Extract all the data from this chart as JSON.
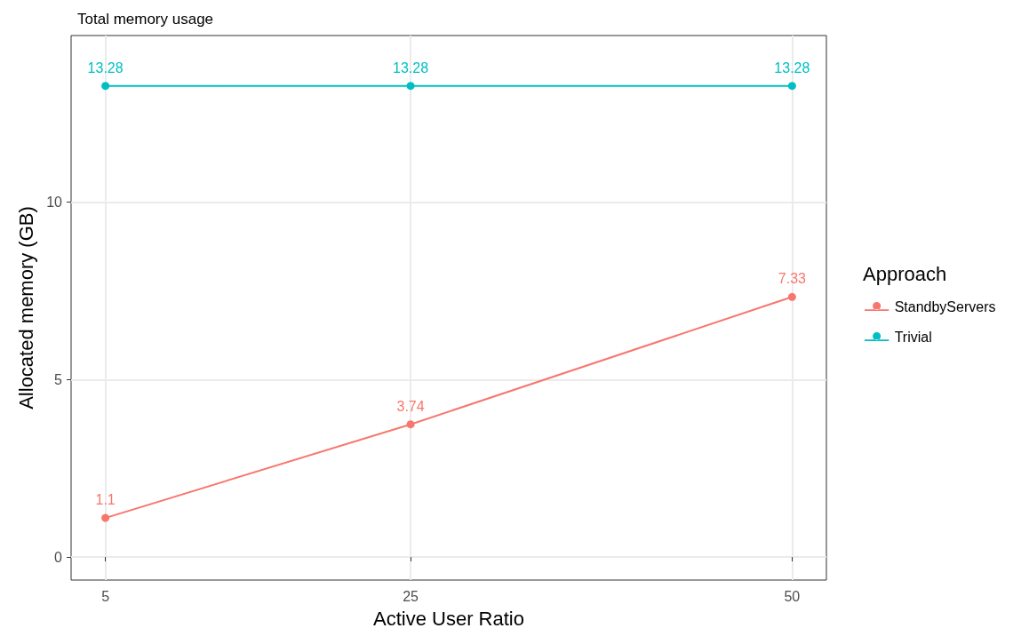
{
  "chart_data": {
    "type": "line",
    "title": "Total memory usage",
    "xlabel": "Active User Ratio",
    "ylabel": "Allocated memory (GB)",
    "legend_title": "Approach",
    "x": [
      5,
      25,
      50
    ],
    "series": [
      {
        "name": "StandbyServers",
        "color": "#f8766d",
        "values": [
          1.1,
          3.74,
          7.33
        ]
      },
      {
        "name": "Trivial",
        "color": "#00bfc4",
        "values": [
          13.28,
          13.28,
          13.28
        ]
      }
    ],
    "xlim": [
      2.75,
      52.25
    ],
    "xticks": [
      5,
      25,
      50
    ],
    "ylim": [
      -0.65,
      14.7
    ],
    "yticks": [
      0,
      5,
      10
    ],
    "grid": true,
    "legend": "right",
    "marker": "circle",
    "line_style": "solid",
    "data_labels": true
  }
}
